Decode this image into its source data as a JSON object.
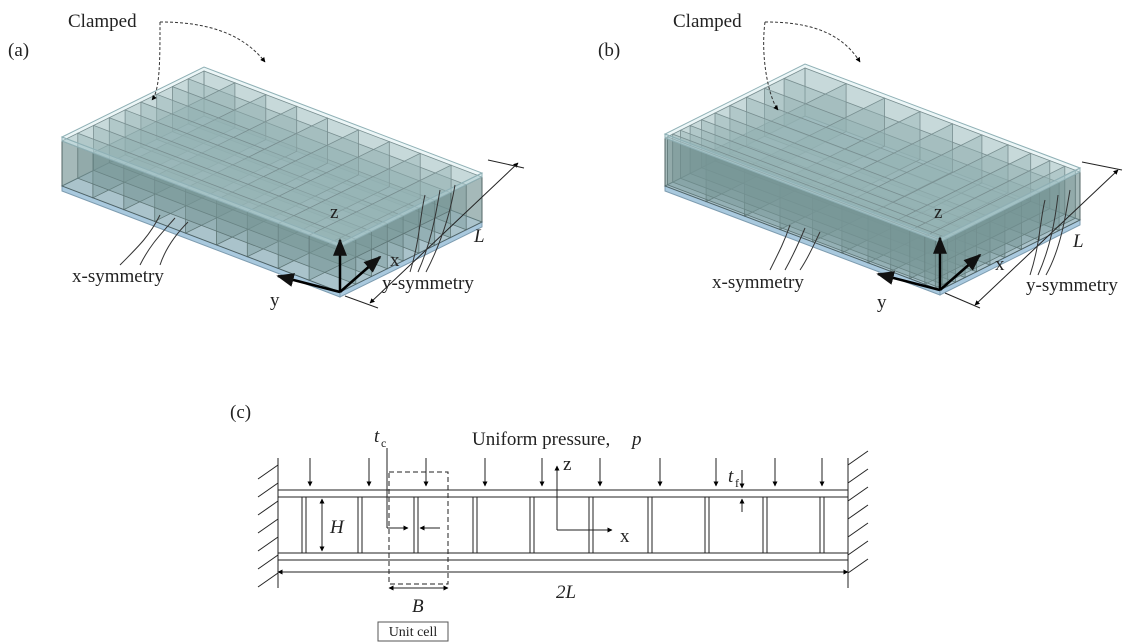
{
  "panels": [
    {
      "label": "(a)",
      "clamped": "Clamped",
      "x_symmetry": "x-symmetry",
      "y_symmetry": "y-symmetry",
      "length": "L",
      "axis_z": "z",
      "axis_x": "x",
      "axis_y": "y"
    },
    {
      "label": "(b)",
      "clamped": "Clamped",
      "x_symmetry": "x-symmetry",
      "y_symmetry": "y-symmetry",
      "length": "L",
      "axis_z": "z",
      "axis_x": "x",
      "axis_y": "y"
    }
  ],
  "section": {
    "label": "(c)",
    "load_label": "Uniform pressure,",
    "load_symbol": "p",
    "core_thickness": {
      "symbol": "t",
      "subscript": "c"
    },
    "face_thickness": {
      "symbol": "t",
      "subscript": "f"
    },
    "axis_z": "z",
    "axis_x": "x",
    "height": "H",
    "span": "2L",
    "cell_width": "B",
    "unit_cell": "Unit cell"
  }
}
